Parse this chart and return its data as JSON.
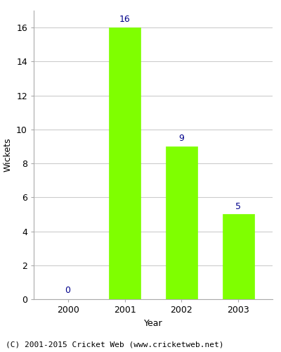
{
  "years": [
    "2000",
    "2001",
    "2002",
    "2003"
  ],
  "values": [
    0,
    16,
    9,
    5
  ],
  "bar_color": "#7FFF00",
  "bar_edge_color": "#7FFF00",
  "xlabel": "Year",
  "ylabel": "Wickets",
  "ylim": [
    0,
    17
  ],
  "yticks": [
    0,
    2,
    4,
    6,
    8,
    10,
    12,
    14,
    16
  ],
  "label_color": "#00008B",
  "label_fontsize": 9,
  "axis_label_fontsize": 9,
  "tick_fontsize": 9,
  "grid_color": "#cccccc",
  "background_color": "#ffffff",
  "footer_text": "(C) 2001-2015 Cricket Web (www.cricketweb.net)",
  "footer_fontsize": 8,
  "bar_width": 0.55,
  "spine_color": "#aaaaaa"
}
